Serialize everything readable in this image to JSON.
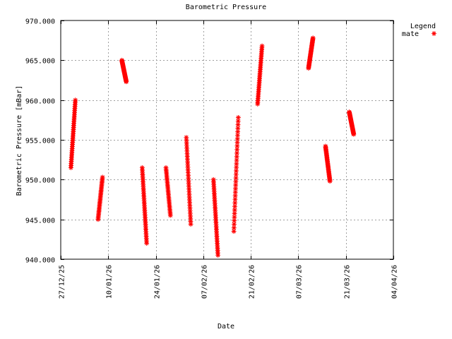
{
  "chart_data": {
    "type": "scatter",
    "title": "Barometric Pressure",
    "xlabel": "Date",
    "ylabel": "Barometric Pressure [mBar]",
    "x_is_date": true,
    "xlim": [
      "2025-12-27",
      "2026-04-04"
    ],
    "ylim": [
      940,
      970
    ],
    "x_ticks": [
      "27/12/25",
      "10/01/26",
      "24/01/26",
      "07/02/26",
      "21/02/26",
      "07/03/26",
      "21/03/26",
      "04/04/26"
    ],
    "y_ticks": [
      "940.000",
      "945.000",
      "950.000",
      "955.000",
      "960.000",
      "965.000",
      "970.000"
    ],
    "grid": true,
    "legend": {
      "title": "Legend",
      "position": "top-right",
      "entries": [
        "mate"
      ]
    },
    "series": [
      {
        "name": "mate",
        "color": "#ff0000",
        "marker": "star",
        "segments": [
          {
            "start": "2025-12-30",
            "end": "2025-12-31",
            "from": 951.5,
            "to": 960.0
          },
          {
            "start": "2026-01-07",
            "end": "2026-01-08",
            "from": 945.0,
            "to": 950.3
          },
          {
            "start": "2026-01-14",
            "end": "2026-01-15",
            "from": 965.0,
            "to": 962.3
          },
          {
            "start": "2026-01-20",
            "end": "2026-01-21",
            "from": 951.5,
            "to": 942.0
          },
          {
            "start": "2026-01-27",
            "end": "2026-01-28",
            "from": 951.5,
            "to": 945.5
          },
          {
            "start": "2026-02-02",
            "end": "2026-02-03",
            "from": 955.3,
            "to": 944.4
          },
          {
            "start": "2026-02-10",
            "end": "2026-02-11",
            "from": 950.0,
            "to": 940.5
          },
          {
            "start": "2026-02-16",
            "end": "2026-02-17",
            "from": 943.5,
            "to": 957.8
          },
          {
            "start": "2026-02-23",
            "end": "2026-02-24",
            "from": 959.5,
            "to": 966.8
          },
          {
            "start": "2026-03-10",
            "end": "2026-03-11",
            "from": 964.0,
            "to": 967.8
          },
          {
            "start": "2026-03-15",
            "end": "2026-03-16",
            "from": 954.2,
            "to": 949.8
          },
          {
            "start": "2026-03-22",
            "end": "2026-03-23",
            "from": 958.5,
            "to": 955.7
          }
        ]
      }
    ]
  }
}
